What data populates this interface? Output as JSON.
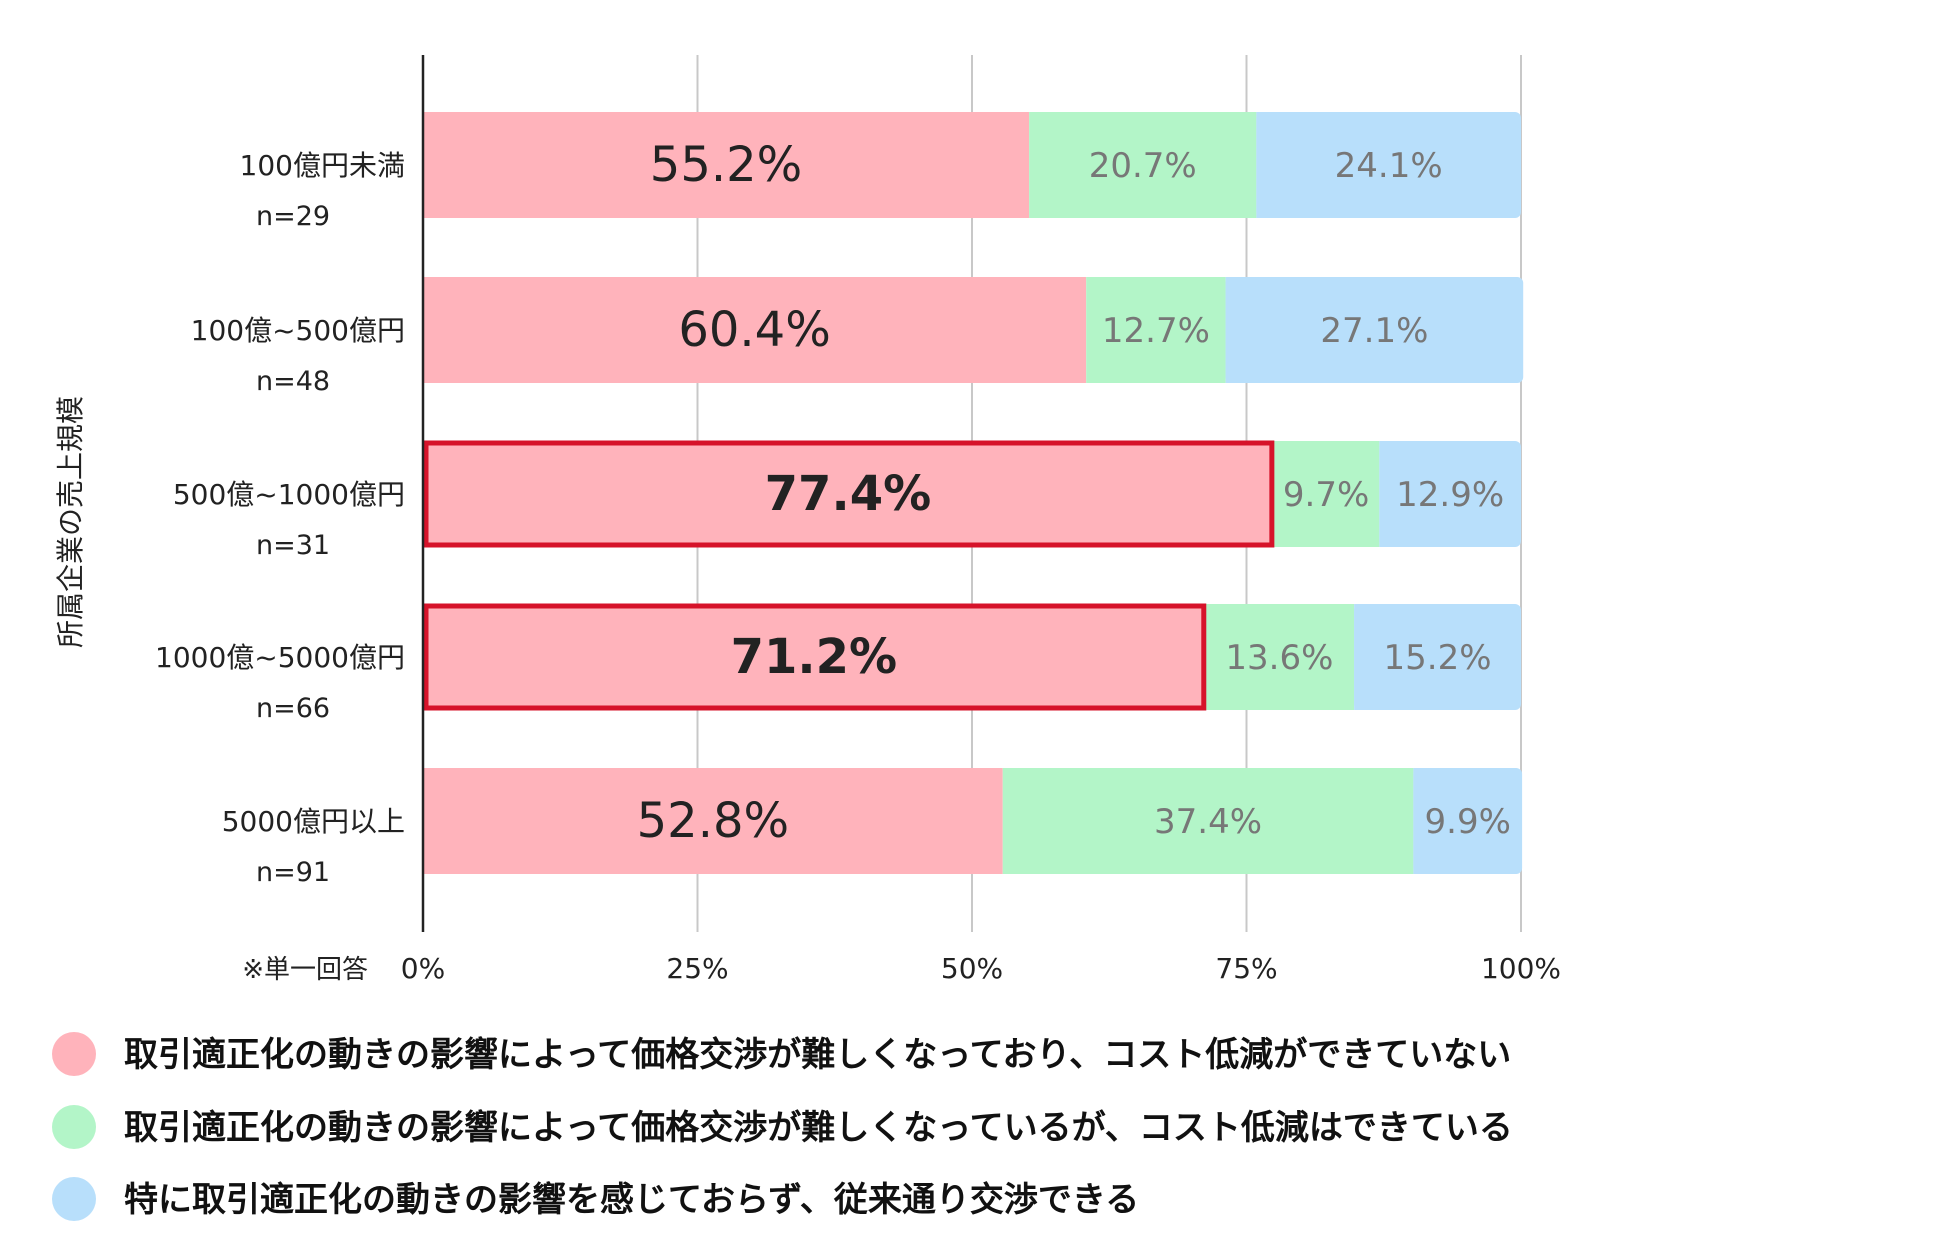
{
  "colors": {
    "series": [
      "#FFB3BB",
      "#B3F5C8",
      "#B8DFFB"
    ],
    "highlight_border": "#D6132A",
    "grid": "#C8C8C8",
    "axis": "#222222",
    "label_primary": "#222222",
    "label_secondary": "#777777"
  },
  "chart_data": {
    "type": "bar",
    "orientation": "horizontal",
    "stacked": true,
    "ylabel": "所属企業の売上規模",
    "xlabel": "",
    "xlim": [
      0,
      100
    ],
    "xticks": [
      0,
      25,
      50,
      75,
      100
    ],
    "xtick_labels": [
      "0%",
      "25%",
      "50%",
      "75%",
      "100%"
    ],
    "note": "※単一回答",
    "grid": true,
    "legend_position": "bottom",
    "categories": [
      {
        "label": "100億円未満",
        "n": "n=29"
      },
      {
        "label": "100億~500億円",
        "n": "n=48"
      },
      {
        "label": "500億~1000億円",
        "n": "n=31"
      },
      {
        "label": "1000億~5000億円",
        "n": "n=66"
      },
      {
        "label": "5000億円以上",
        "n": "n=91"
      }
    ],
    "highlighted": [
      false,
      false,
      true,
      true,
      false
    ],
    "series": [
      {
        "name": "取引適正化の動きの影響によって価格交渉が難しくなっており、コスト低減ができていない",
        "values": [
          55.2,
          60.4,
          77.4,
          71.2,
          52.8
        ]
      },
      {
        "name": "取引適正化の動きの影響によって価格交渉が難しくなっているが、コスト低減はできている",
        "values": [
          20.7,
          12.7,
          9.7,
          13.6,
          37.4
        ]
      },
      {
        "name": "特に取引適正化の動きの影響を感じておらず、従来通り交渉できる",
        "values": [
          24.1,
          27.1,
          12.9,
          15.2,
          9.9
        ]
      }
    ],
    "value_labels": [
      [
        "55.2%",
        "20.7%",
        "24.1%"
      ],
      [
        "60.4%",
        "12.7%",
        "27.1%"
      ],
      [
        "77.4%",
        "9.7%",
        "12.9%"
      ],
      [
        "71.2%",
        "13.6%",
        "15.2%"
      ],
      [
        "52.8%",
        "37.4%",
        "9.9%"
      ]
    ]
  }
}
